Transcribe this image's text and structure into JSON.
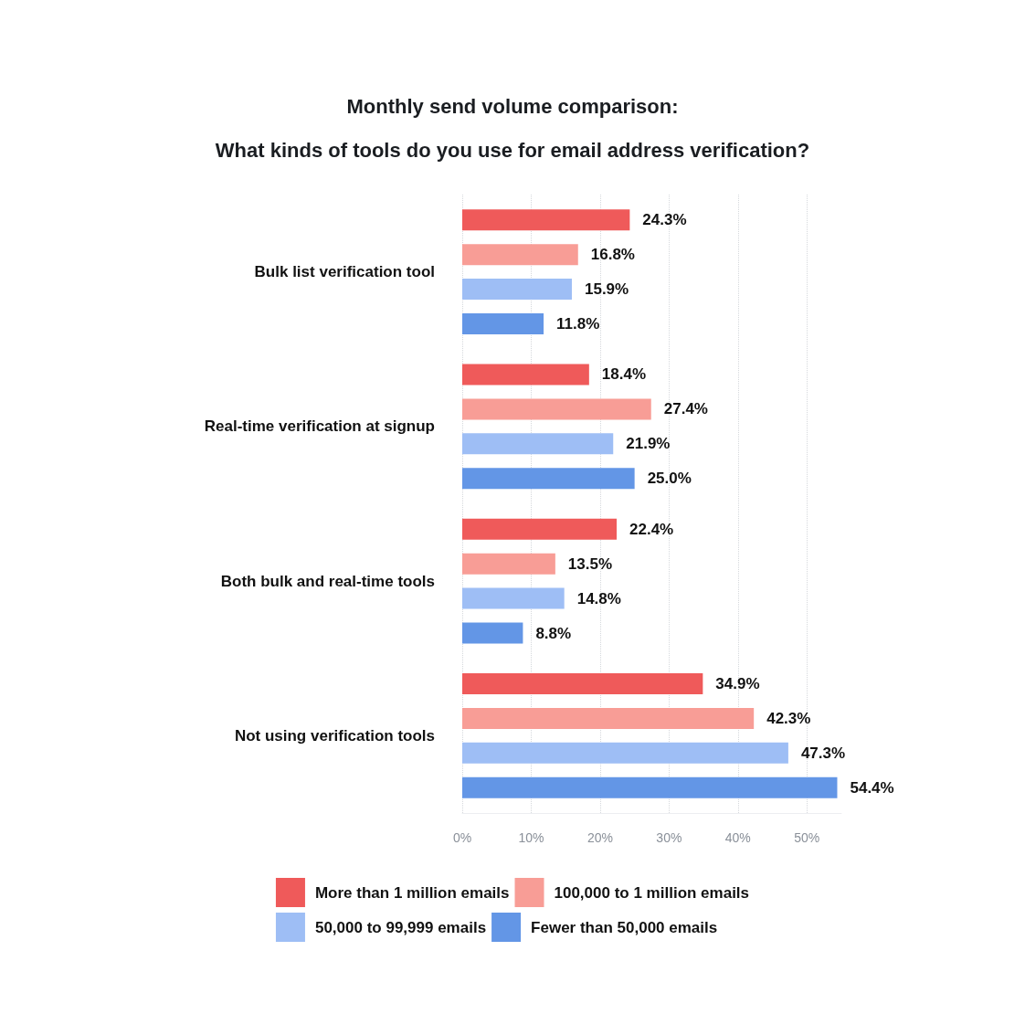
{
  "chart_data": {
    "type": "bar",
    "orientation": "horizontal",
    "title": "Monthly send volume comparison:",
    "subtitle": "What kinds of tools do you use for email address verification?",
    "categories": [
      "Bulk list verification tool",
      "Real-time verification at signup",
      "Both bulk and real-time tools",
      "Not using verification tools"
    ],
    "series": [
      {
        "name": "More than 1 million emails",
        "color": "#ef5a5a",
        "values": [
          24.3,
          18.4,
          22.4,
          34.9
        ],
        "value_labels": [
          "24.3%",
          "18.4%",
          "22.4%",
          "34.9%"
        ]
      },
      {
        "name": "100,000 to 1 million emails",
        "color": "#f89d96",
        "values": [
          16.8,
          27.4,
          13.5,
          42.3
        ],
        "value_labels": [
          "16.8%",
          "27.4%",
          "13.5%",
          "42.3%"
        ]
      },
      {
        "name": "50,000 to 99,999 emails",
        "color": "#9ebef5",
        "values": [
          15.9,
          21.9,
          14.8,
          47.3
        ],
        "value_labels": [
          "15.9%",
          "21.9%",
          "14.8%",
          "47.3%"
        ]
      },
      {
        "name": "Fewer than 50,000 emails",
        "color": "#6396e6",
        "values": [
          11.8,
          25.0,
          8.8,
          54.4
        ],
        "value_labels": [
          "11.8%",
          "25.0%",
          "8.8%",
          "54.4%"
        ]
      }
    ],
    "xlim": [
      0,
      55
    ],
    "xticks": [
      {
        "value": 0,
        "label": "0%"
      },
      {
        "value": 10,
        "label": "10%"
      },
      {
        "value": 20,
        "label": "20%"
      },
      {
        "value": 30,
        "label": "30%"
      },
      {
        "value": 40,
        "label": "40%"
      },
      {
        "value": 50,
        "label": "50%"
      }
    ],
    "grid": "x",
    "legend": "bottom"
  }
}
